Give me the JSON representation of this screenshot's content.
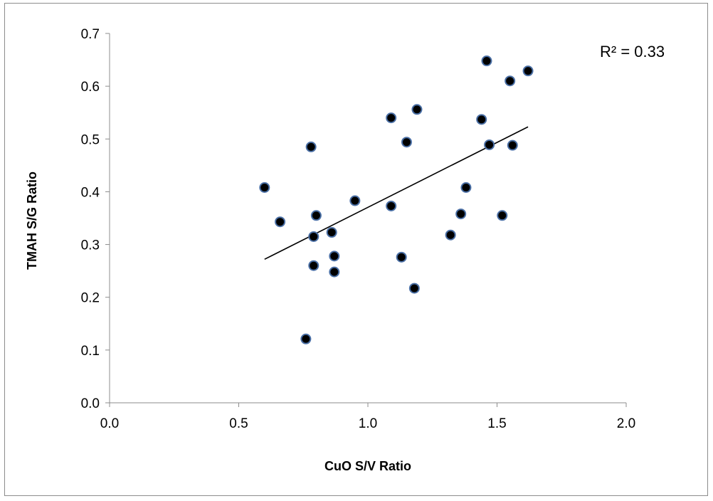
{
  "chart_data": {
    "type": "scatter",
    "title": "",
    "xlabel": "CuO S/V Ratio",
    "ylabel": "TMAH S/G Ratio",
    "xlim": [
      0.0,
      2.0
    ],
    "ylim": [
      0.0,
      0.7
    ],
    "x_ticks": [
      "0.0",
      "0.5",
      "1.0",
      "1.5",
      "2.0"
    ],
    "y_ticks": [
      "0.0",
      "0.1",
      "0.2",
      "0.3",
      "0.4",
      "0.5",
      "0.6",
      "0.7"
    ],
    "x_tick_values": [
      0.0,
      0.5,
      1.0,
      1.5,
      2.0
    ],
    "y_tick_values": [
      0.0,
      0.1,
      0.2,
      0.3,
      0.4,
      0.5,
      0.6,
      0.7
    ],
    "grid": false,
    "legend": "none",
    "annotation": "R² = 0.33",
    "marker_color": "#000000",
    "marker_edge_color": "#4a6fa5",
    "trendline_color": "#000000",
    "trendline": {
      "x": [
        0.6,
        1.62
      ],
      "y": [
        0.272,
        0.523
      ]
    },
    "points": [
      {
        "x": 0.6,
        "y": 0.408
      },
      {
        "x": 0.66,
        "y": 0.343
      },
      {
        "x": 0.76,
        "y": 0.121
      },
      {
        "x": 0.78,
        "y": 0.485
      },
      {
        "x": 0.79,
        "y": 0.26
      },
      {
        "x": 0.79,
        "y": 0.315
      },
      {
        "x": 0.8,
        "y": 0.355
      },
      {
        "x": 0.86,
        "y": 0.323
      },
      {
        "x": 0.87,
        "y": 0.248
      },
      {
        "x": 0.87,
        "y": 0.278
      },
      {
        "x": 0.95,
        "y": 0.383
      },
      {
        "x": 1.09,
        "y": 0.54
      },
      {
        "x": 1.09,
        "y": 0.373
      },
      {
        "x": 1.13,
        "y": 0.276
      },
      {
        "x": 1.15,
        "y": 0.494
      },
      {
        "x": 1.18,
        "y": 0.217
      },
      {
        "x": 1.19,
        "y": 0.556
      },
      {
        "x": 1.32,
        "y": 0.318
      },
      {
        "x": 1.36,
        "y": 0.358
      },
      {
        "x": 1.38,
        "y": 0.408
      },
      {
        "x": 1.44,
        "y": 0.537
      },
      {
        "x": 1.46,
        "y": 0.648
      },
      {
        "x": 1.47,
        "y": 0.489
      },
      {
        "x": 1.52,
        "y": 0.355
      },
      {
        "x": 1.55,
        "y": 0.61
      },
      {
        "x": 1.56,
        "y": 0.488
      },
      {
        "x": 1.62,
        "y": 0.629
      }
    ]
  }
}
